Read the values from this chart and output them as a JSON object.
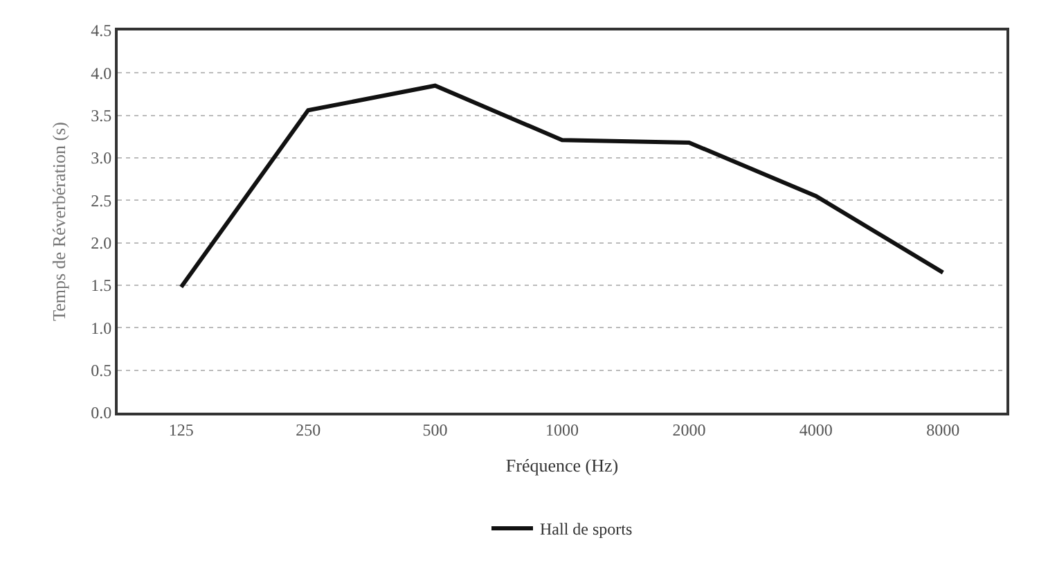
{
  "chart_data": {
    "type": "line",
    "xlabel": "Fréquence (Hz)",
    "ylabel": "Temps de Réverbération (s)",
    "categories": [
      "125",
      "250",
      "500",
      "1000",
      "2000",
      "4000",
      "8000"
    ],
    "series": [
      {
        "name": "Hall de sports",
        "color": "#111111",
        "values": [
          1.48,
          3.56,
          3.85,
          3.21,
          3.18,
          2.55,
          1.65
        ]
      }
    ],
    "ylim": [
      0,
      4.5
    ],
    "yticks": [
      {
        "value": 0,
        "label": "0.0"
      },
      0.5,
      {
        "value": 1,
        "label": "1.0"
      },
      1.5,
      {
        "value": 2,
        "label": "2.0"
      },
      2.5,
      {
        "value": 3,
        "label": "3.0"
      },
      3.5,
      {
        "value": 4,
        "label": "4.0"
      },
      4.5
    ],
    "grid": "y",
    "legend": "bottom",
    "marker": "none",
    "line_style": "solid"
  }
}
